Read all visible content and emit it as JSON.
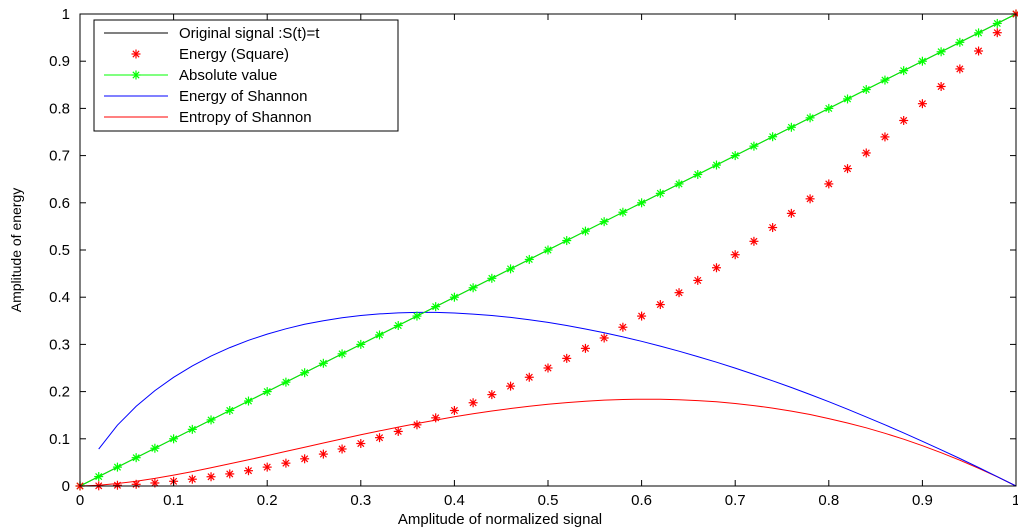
{
  "chart_data": {
    "type": "line",
    "title": "",
    "xlabel": "Amplitude of normalized signal",
    "ylabel": "Amplitude of energy",
    "xlim": [
      0,
      1
    ],
    "ylim": [
      0,
      1
    ],
    "x_ticks": [
      "0",
      "0.1",
      "0.2",
      "0.3",
      "0.4",
      "0.5",
      "0.6",
      "0.7",
      "0.8",
      "0.9",
      "1"
    ],
    "y_ticks": [
      "0",
      "0.1",
      "0.2",
      "0.3",
      "0.4",
      "0.5",
      "0.6",
      "0.7",
      "0.8",
      "0.9",
      "1"
    ],
    "grid": false,
    "legend_position": "top-left",
    "series": [
      {
        "name": "Original signal :S(t)=t",
        "style": "line",
        "color": "#000000",
        "x": [
          0,
          1
        ],
        "y": [
          0,
          1
        ]
      },
      {
        "name": "Energy (Square)",
        "style": "markers",
        "marker": "*",
        "color": "#ff0000",
        "x": [
          0,
          0.02,
          0.04,
          0.06,
          0.08,
          0.1,
          0.12,
          0.14,
          0.16,
          0.18,
          0.2,
          0.22,
          0.24,
          0.26,
          0.28,
          0.3,
          0.32,
          0.34,
          0.36,
          0.38,
          0.4,
          0.42,
          0.44,
          0.46,
          0.48,
          0.5,
          0.52,
          0.54,
          0.56,
          0.58,
          0.6,
          0.62,
          0.64,
          0.66,
          0.68,
          0.7,
          0.72,
          0.74,
          0.76,
          0.78,
          0.8,
          0.82,
          0.84,
          0.86,
          0.88,
          0.9,
          0.92,
          0.94,
          0.96,
          0.98,
          1
        ],
        "y": [
          0,
          0.0004,
          0.0016,
          0.0036,
          0.0064,
          0.01,
          0.0144,
          0.0196,
          0.0256,
          0.0324,
          0.04,
          0.0484,
          0.0576,
          0.0676,
          0.0784,
          0.09,
          0.1024,
          0.1156,
          0.1296,
          0.1444,
          0.16,
          0.1764,
          0.1936,
          0.2116,
          0.2304,
          0.25,
          0.2704,
          0.2916,
          0.3136,
          0.3364,
          0.36,
          0.3844,
          0.4096,
          0.4356,
          0.4624,
          0.49,
          0.5184,
          0.5476,
          0.5776,
          0.6084,
          0.64,
          0.6724,
          0.7056,
          0.7396,
          0.7744,
          0.81,
          0.8464,
          0.8836,
          0.9216,
          0.9604,
          1
        ]
      },
      {
        "name": "Absolute value",
        "style": "line+markers",
        "marker": "*",
        "color": "#00ff00",
        "x": [
          0,
          0.02,
          0.04,
          0.06,
          0.08,
          0.1,
          0.12,
          0.14,
          0.16,
          0.18,
          0.2,
          0.22,
          0.24,
          0.26,
          0.28,
          0.3,
          0.32,
          0.34,
          0.36,
          0.38,
          0.4,
          0.42,
          0.44,
          0.46,
          0.48,
          0.5,
          0.52,
          0.54,
          0.56,
          0.58,
          0.6,
          0.62,
          0.64,
          0.66,
          0.68,
          0.7,
          0.72,
          0.74,
          0.76,
          0.78,
          0.8,
          0.82,
          0.84,
          0.86,
          0.88,
          0.9,
          0.92,
          0.94,
          0.96,
          0.98,
          1
        ],
        "y": [
          0,
          0.02,
          0.04,
          0.06,
          0.08,
          0.1,
          0.12,
          0.14,
          0.16,
          0.18,
          0.2,
          0.22,
          0.24,
          0.26,
          0.28,
          0.3,
          0.32,
          0.34,
          0.36,
          0.38,
          0.4,
          0.42,
          0.44,
          0.46,
          0.48,
          0.5,
          0.52,
          0.54,
          0.56,
          0.58,
          0.6,
          0.62,
          0.64,
          0.66,
          0.68,
          0.7,
          0.72,
          0.74,
          0.76,
          0.78,
          0.8,
          0.82,
          0.84,
          0.86,
          0.88,
          0.9,
          0.92,
          0.94,
          0.96,
          0.98,
          1
        ]
      },
      {
        "name": "Energy of Shannon",
        "style": "line",
        "color": "#0000ff",
        "x": [
          0.02,
          0.04,
          0.06,
          0.08,
          0.1,
          0.12,
          0.14,
          0.16,
          0.18,
          0.2,
          0.22,
          0.24,
          0.26,
          0.28,
          0.3,
          0.32,
          0.34,
          0.36,
          0.38,
          0.4,
          0.42,
          0.44,
          0.46,
          0.48,
          0.5,
          0.52,
          0.54,
          0.56,
          0.58,
          0.6,
          0.62,
          0.64,
          0.66,
          0.68,
          0.7,
          0.72,
          0.74,
          0.76,
          0.78,
          0.8,
          0.82,
          0.84,
          0.86,
          0.88,
          0.9,
          0.92,
          0.94,
          0.96,
          0.98,
          1
        ],
        "y": [
          0.0782,
          0.1288,
          0.1688,
          0.2021,
          0.2303,
          0.2544,
          0.2753,
          0.2932,
          0.3087,
          0.3219,
          0.3331,
          0.3425,
          0.3502,
          0.3564,
          0.3612,
          0.3646,
          0.3668,
          0.3678,
          0.3677,
          0.3665,
          0.3643,
          0.3612,
          0.3572,
          0.3523,
          0.3466,
          0.34,
          0.3327,
          0.3247,
          0.3159,
          0.3065,
          0.2964,
          0.2856,
          0.2742,
          0.2623,
          0.2497,
          0.2365,
          0.2228,
          0.2086,
          0.1938,
          0.1785,
          0.1627,
          0.1465,
          0.1297,
          0.1125,
          0.0948,
          0.0767,
          0.0582,
          0.0392,
          0.0198,
          0
        ]
      },
      {
        "name": "Entropy of Shannon",
        "style": "line",
        "color": "#ff0000",
        "x": [
          0,
          0.02,
          0.04,
          0.06,
          0.08,
          0.1,
          0.12,
          0.14,
          0.16,
          0.18,
          0.2,
          0.22,
          0.24,
          0.26,
          0.28,
          0.3,
          0.32,
          0.34,
          0.36,
          0.38,
          0.4,
          0.42,
          0.44,
          0.46,
          0.48,
          0.5,
          0.52,
          0.54,
          0.56,
          0.58,
          0.6,
          0.62,
          0.64,
          0.66,
          0.68,
          0.7,
          0.72,
          0.74,
          0.76,
          0.78,
          0.8,
          0.82,
          0.84,
          0.86,
          0.88,
          0.9,
          0.92,
          0.94,
          0.96,
          0.98,
          1
        ],
        "y": [
          0,
          0.0016,
          0.0052,
          0.0101,
          0.0162,
          0.023,
          0.0305,
          0.0385,
          0.047,
          0.0556,
          0.0644,
          0.0733,
          0.0822,
          0.091,
          0.0998,
          0.1084,
          0.1168,
          0.1247,
          0.1324,
          0.1397,
          0.1466,
          0.153,
          0.159,
          0.1643,
          0.1691,
          0.1733,
          0.1768,
          0.1797,
          0.1819,
          0.1833,
          0.1839,
          0.1838,
          0.1828,
          0.1809,
          0.1783,
          0.1747,
          0.1703,
          0.165,
          0.1587,
          0.1514,
          0.1428,
          0.1334,
          0.1232,
          0.1117,
          0.0991,
          0.0853,
          0.0706,
          0.0547,
          0.0376,
          0.0194,
          0
        ]
      }
    ]
  }
}
